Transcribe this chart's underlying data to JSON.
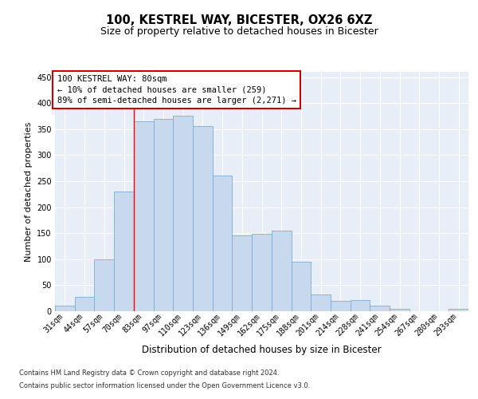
{
  "title1": "100, KESTREL WAY, BICESTER, OX26 6XZ",
  "title2": "Size of property relative to detached houses in Bicester",
  "xlabel": "Distribution of detached houses by size in Bicester",
  "ylabel": "Number of detached properties",
  "categories": [
    "31sqm",
    "44sqm",
    "57sqm",
    "70sqm",
    "83sqm",
    "97sqm",
    "110sqm",
    "123sqm",
    "136sqm",
    "149sqm",
    "162sqm",
    "175sqm",
    "188sqm",
    "201sqm",
    "214sqm",
    "228sqm",
    "241sqm",
    "254sqm",
    "267sqm",
    "280sqm",
    "293sqm"
  ],
  "values": [
    10,
    28,
    100,
    230,
    365,
    370,
    375,
    355,
    260,
    145,
    148,
    155,
    95,
    32,
    20,
    22,
    11,
    5,
    0,
    0,
    4
  ],
  "bar_color": "#c8d9ee",
  "bar_edge_color": "#7aaed4",
  "vline_index": 4,
  "annotation_line1": "100 KESTREL WAY: 80sqm",
  "annotation_line2": "← 10% of detached houses are smaller (259)",
  "annotation_line3": "89% of semi-detached houses are larger (2,271) →",
  "annotation_box_facecolor": "#ffffff",
  "annotation_box_edgecolor": "#cc0000",
  "ylim": [
    0,
    460
  ],
  "yticks": [
    0,
    50,
    100,
    150,
    200,
    250,
    300,
    350,
    400,
    450
  ],
  "footer1": "Contains HM Land Registry data © Crown copyright and database right 2024.",
  "footer2": "Contains public sector information licensed under the Open Government Licence v3.0.",
  "fig_facecolor": "#ffffff",
  "ax_facecolor": "#e8eef8",
  "grid_color": "#ffffff",
  "title1_fontsize": 10.5,
  "title2_fontsize": 9,
  "xlabel_fontsize": 8.5,
  "ylabel_fontsize": 8,
  "tick_fontsize": 7,
  "annotation_fontsize": 7.5,
  "footer_fontsize": 6
}
